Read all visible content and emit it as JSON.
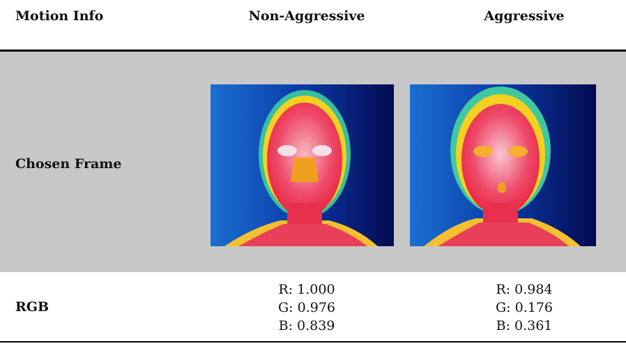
{
  "table": {
    "header": [
      "Motion Info",
      "Non-Aggressive",
      "Aggressive"
    ],
    "rows": [
      {
        "label": "Chosen Frame"
      },
      {
        "label": "RGB",
        "cells": [
          [
            "R: 1.000",
            "G: 0.976",
            "B: 0.839"
          ],
          [
            "R: 0.984",
            "G: 0.176",
            "B: 0.361"
          ]
        ]
      }
    ]
  }
}
